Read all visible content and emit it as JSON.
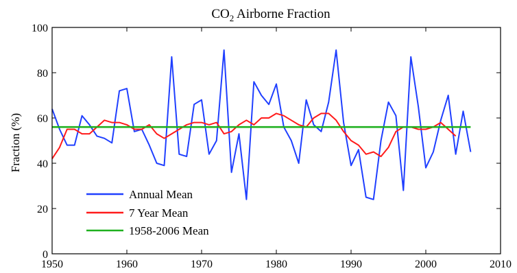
{
  "chart_data": {
    "type": "line",
    "title_main": "CO",
    "title_sub": "2",
    "title_rest": " Airborne Fraction",
    "ylabel": "Fraction (%)",
    "xlabel": "",
    "xlim": [
      1950,
      2010
    ],
    "ylim": [
      0,
      100
    ],
    "xticks": [
      "1950",
      "1960",
      "1970",
      "1980",
      "1990",
      "2000",
      "2010"
    ],
    "yticks": [
      "0",
      "20",
      "40",
      "60",
      "80",
      "100"
    ],
    "grid": false,
    "legend_position": "bottom-left",
    "series": [
      {
        "name": "Annual Mean",
        "color": "#1f3fff",
        "x": [
          1950,
          1951,
          1952,
          1953,
          1954,
          1955,
          1956,
          1957,
          1958,
          1959,
          1960,
          1961,
          1962,
          1963,
          1964,
          1965,
          1966,
          1967,
          1968,
          1969,
          1970,
          1971,
          1972,
          1973,
          1974,
          1975,
          1976,
          1977,
          1978,
          1979,
          1980,
          1981,
          1982,
          1983,
          1984,
          1985,
          1986,
          1987,
          1988,
          1989,
          1990,
          1991,
          1992,
          1993,
          1994,
          1995,
          1996,
          1997,
          1998,
          1999,
          2000,
          2001,
          2002,
          2003,
          2004,
          2005,
          2006
        ],
        "y": [
          64,
          55,
          48,
          48,
          61,
          57,
          52,
          51,
          49,
          72,
          73,
          54,
          55,
          48,
          40,
          39,
          87,
          44,
          43,
          66,
          68,
          44,
          50,
          90,
          36,
          53,
          24,
          76,
          70,
          66,
          75,
          56,
          50,
          40,
          68,
          57,
          54,
          67,
          90,
          58,
          39,
          46,
          25,
          24,
          50,
          67,
          61,
          28,
          87,
          65,
          38,
          45,
          59,
          70,
          44,
          63,
          45
        ]
      },
      {
        "name": "7 Year Mean",
        "color": "#ff1a1a",
        "x": [
          1950,
          1951,
          1952,
          1953,
          1954,
          1955,
          1956,
          1957,
          1958,
          1959,
          1960,
          1961,
          1962,
          1963,
          1964,
          1965,
          1966,
          1967,
          1968,
          1969,
          1970,
          1971,
          1972,
          1973,
          1974,
          1975,
          1976,
          1977,
          1978,
          1979,
          1980,
          1981,
          1982,
          1983,
          1984,
          1985,
          1986,
          1987,
          1988,
          1989,
          1990,
          1991,
          1992,
          1993,
          1994,
          1995,
          1996,
          1997,
          1998,
          1999,
          2000,
          2001,
          2002,
          2003,
          2004
        ],
        "y": [
          42,
          47,
          55,
          55,
          53,
          53,
          56,
          59,
          58,
          58,
          57,
          55,
          55,
          57,
          53,
          51,
          53,
          55,
          57,
          58,
          58,
          57,
          58,
          53,
          54,
          57,
          59,
          57,
          60,
          60,
          62,
          61,
          59,
          57,
          56,
          60,
          62,
          62,
          59,
          54,
          50,
          48,
          44,
          45,
          43,
          47,
          54,
          56,
          56,
          55,
          55,
          56,
          58,
          55,
          52
        ]
      },
      {
        "name": "1958-2006 Mean",
        "color": "#1fb01f",
        "x": [
          1950,
          2006
        ],
        "y": [
          56,
          56
        ]
      }
    ]
  }
}
